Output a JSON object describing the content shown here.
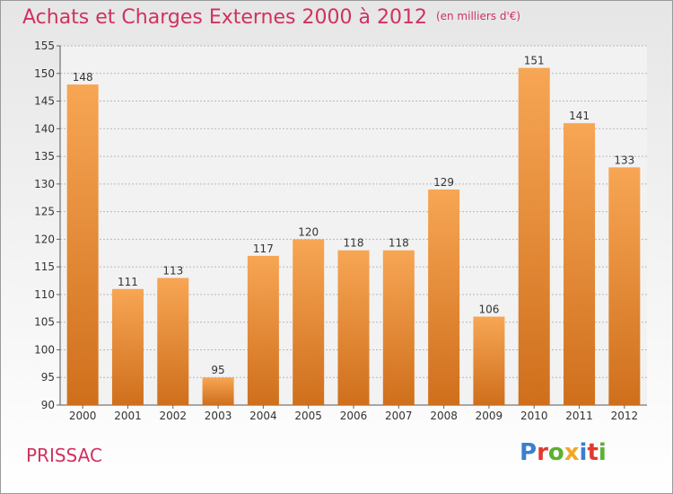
{
  "header": {
    "title": "Achats et Charges Externes 2000 à 2012",
    "unit": "(en milliers d'€)"
  },
  "footer": {
    "commune": "PRISSAC",
    "logo": {
      "text": "Proxiti",
      "letters": [
        {
          "ch": "P",
          "color": "#3a7fd0"
        },
        {
          "ch": "r",
          "color": "#e03a2f"
        },
        {
          "ch": "o",
          "color": "#5cb030"
        },
        {
          "ch": "x",
          "color": "#f5a623"
        },
        {
          "ch": "i",
          "color": "#3a7fd0"
        },
        {
          "ch": "t",
          "color": "#e03a2f"
        },
        {
          "ch": "i",
          "color": "#5cb030"
        }
      ]
    }
  },
  "colors": {
    "bar_top": "#f7a654",
    "bar_bottom": "#cf6f1c",
    "grid": "#b8b8b8",
    "text": "#333333"
  },
  "chart_data": {
    "type": "bar",
    "categories": [
      "2000",
      "2001",
      "2002",
      "2003",
      "2004",
      "2005",
      "2006",
      "2007",
      "2008",
      "2009",
      "2010",
      "2011",
      "2012"
    ],
    "values": [
      148,
      111,
      113,
      95,
      117,
      120,
      118,
      118,
      129,
      106,
      151,
      141,
      133
    ],
    "data_labels": [
      "148",
      "111",
      "113",
      "95",
      "117",
      "120",
      "118",
      "118",
      "129",
      "106",
      "151",
      "141",
      "133"
    ],
    "ylim": [
      90,
      155
    ],
    "yticks": [
      "90",
      "95",
      "100",
      "105",
      "110",
      "115",
      "120",
      "125",
      "130",
      "135",
      "140",
      "145",
      "150",
      "155"
    ],
    "grid": "dashed-horizontal",
    "legend": "none"
  }
}
